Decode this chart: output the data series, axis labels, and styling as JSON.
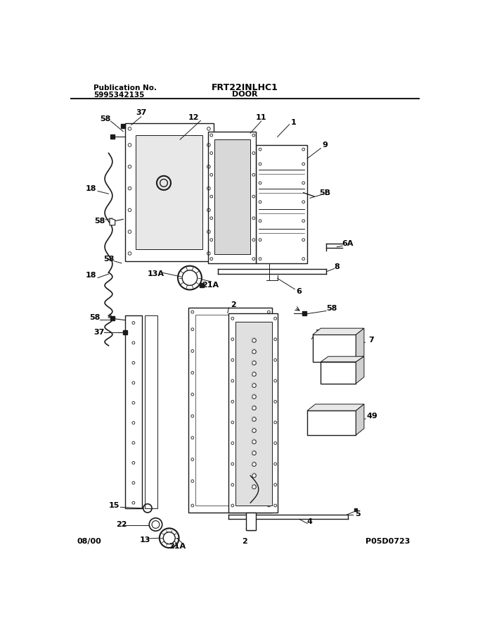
{
  "title": "FRT22INLHC1",
  "subtitle": "DOOR",
  "pub_no_label": "Publication No.",
  "pub_no": "5995342135",
  "page_code": "P05D0723",
  "date": "08/00",
  "page_num": "2",
  "bg_color": "#ffffff",
  "line_color": "#1a1a1a",
  "figsize": [
    6.8,
    8.82
  ],
  "dpi": 100
}
